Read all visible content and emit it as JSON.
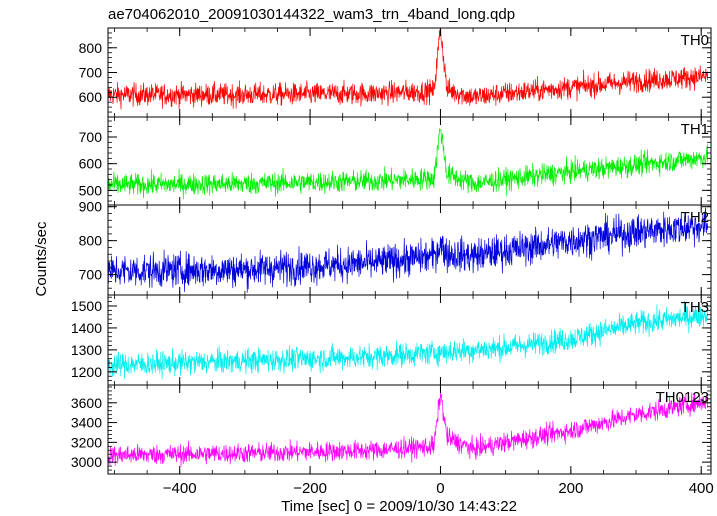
{
  "chart_data": {
    "type": "line",
    "title": "ae704062010_20091030144322_wam3_trn_4band_long.qdp",
    "xlabel": "Time [sec] 0 = 2009/10/30 14:43:22",
    "ylabel": "Counts/sec",
    "xlim": [
      -510,
      415
    ],
    "x_ticks": [
      -400,
      -200,
      0,
      200,
      400
    ],
    "x_tick_labels": [
      "−400",
      "−200",
      "0",
      "200",
      "400"
    ],
    "grid": false,
    "legend": "none",
    "panels": [
      {
        "name": "TH0",
        "color": "#ff0000",
        "ylim": [
          520,
          880
        ],
        "y_ticks": [
          600,
          700,
          800
        ],
        "y_tick_labels": [
          "600",
          "700",
          "800"
        ],
        "keypoints": [
          [
            -510,
            610
          ],
          [
            -300,
            610
          ],
          [
            -100,
            615
          ],
          [
            -10,
            625
          ],
          [
            0,
            880
          ],
          [
            10,
            630
          ],
          [
            50,
            600
          ],
          [
            100,
            615
          ],
          [
            200,
            640
          ],
          [
            300,
            665
          ],
          [
            410,
            685
          ]
        ],
        "noise": 50
      },
      {
        "name": "TH1",
        "color": "#00ee00",
        "ylim": [
          445,
          775
        ],
        "y_ticks": [
          500,
          600,
          700
        ],
        "y_tick_labels": [
          "500",
          "600",
          "700"
        ],
        "keypoints": [
          [
            -510,
            520
          ],
          [
            -300,
            525
          ],
          [
            -100,
            535
          ],
          [
            -10,
            545
          ],
          [
            0,
            740
          ],
          [
            10,
            560
          ],
          [
            50,
            525
          ],
          [
            100,
            540
          ],
          [
            200,
            570
          ],
          [
            300,
            595
          ],
          [
            410,
            625
          ]
        ],
        "noise": 45
      },
      {
        "name": "TH2",
        "color": "#0000dd",
        "ylim": [
          640,
          905
        ],
        "y_ticks": [
          700,
          800,
          900
        ],
        "y_tick_labels": [
          "700",
          "800",
          "900"
        ],
        "keypoints": [
          [
            -510,
            710
          ],
          [
            -300,
            715
          ],
          [
            -100,
            735
          ],
          [
            -10,
            755
          ],
          [
            0,
            790
          ],
          [
            10,
            760
          ],
          [
            50,
            755
          ],
          [
            100,
            770
          ],
          [
            200,
            800
          ],
          [
            300,
            825
          ],
          [
            410,
            845
          ]
        ],
        "noise": 55
      },
      {
        "name": "TH3",
        "color": "#00eeee",
        "ylim": [
          1140,
          1550
        ],
        "y_ticks": [
          1200,
          1300,
          1400,
          1500
        ],
        "y_tick_labels": [
          "1200",
          "1300",
          "1400",
          "1500"
        ],
        "keypoints": [
          [
            -510,
            1230
          ],
          [
            -300,
            1250
          ],
          [
            -100,
            1270
          ],
          [
            0,
            1290
          ],
          [
            100,
            1310
          ],
          [
            200,
            1350
          ],
          [
            300,
            1420
          ],
          [
            410,
            1460
          ]
        ],
        "noise": 60
      },
      {
        "name": "TH0123",
        "color": "#ff00ff",
        "ylim": [
          2880,
          3780
        ],
        "y_ticks": [
          3000,
          3200,
          3400,
          3600
        ],
        "y_tick_labels": [
          "3000",
          "3200",
          "3400",
          "3600"
        ],
        "keypoints": [
          [
            -510,
            3070
          ],
          [
            -300,
            3090
          ],
          [
            -100,
            3120
          ],
          [
            -10,
            3160
          ],
          [
            0,
            3700
          ],
          [
            10,
            3250
          ],
          [
            50,
            3130
          ],
          [
            100,
            3200
          ],
          [
            200,
            3320
          ],
          [
            300,
            3480
          ],
          [
            410,
            3620
          ]
        ],
        "noise": 110
      }
    ]
  }
}
